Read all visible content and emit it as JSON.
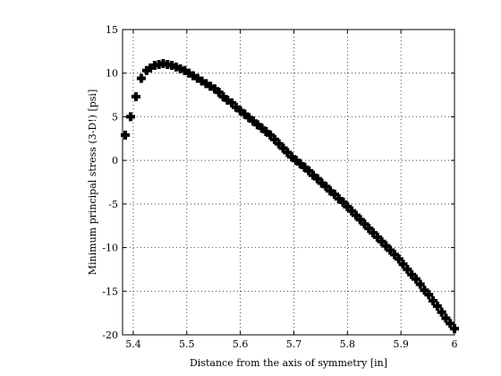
{
  "chart_data": {
    "type": "scatter",
    "title": "",
    "xlabel": "Distance from the axis of symmetry [in]",
    "ylabel": "Minimum principal stress (3-D!) [psi]",
    "xlim": [
      5.38,
      6.0
    ],
    "ylim": [
      -20,
      15
    ],
    "xticks": [
      5.4,
      5.5,
      5.6,
      5.7,
      5.8,
      5.9,
      6.0
    ],
    "xtick_labels": [
      "5.4",
      "5.5",
      "5.6",
      "5.7",
      "5.8",
      "5.9",
      "6"
    ],
    "yticks": [
      -20,
      -15,
      -10,
      -5,
      0,
      5,
      10,
      15
    ],
    "ytick_labels": [
      "-20",
      "-15",
      "-10",
      "-5",
      "0",
      "5",
      "10",
      "15"
    ],
    "grid": true,
    "marker": "plus",
    "marker_color": "#000000",
    "series": [
      {
        "x": [
          5.385,
          5.395,
          5.405,
          5.415,
          5.425,
          5.432,
          5.44,
          5.448,
          5.456,
          5.464,
          5.472,
          5.48,
          5.488,
          5.496,
          5.504,
          5.512,
          5.52,
          5.528,
          5.536,
          5.544,
          5.552,
          5.56,
          5.568,
          5.576,
          5.584,
          5.592,
          5.6,
          5.608,
          5.616,
          5.624,
          5.632,
          5.64,
          5.648,
          5.656,
          5.664,
          5.672,
          5.68,
          5.688,
          5.696,
          5.704,
          5.712,
          5.72,
          5.728,
          5.736,
          5.744,
          5.752,
          5.76,
          5.768,
          5.776,
          5.784,
          5.792,
          5.8,
          5.808,
          5.816,
          5.824,
          5.832,
          5.84,
          5.848,
          5.856,
          5.864,
          5.872,
          5.88,
          5.888,
          5.896,
          5.904,
          5.912,
          5.92,
          5.928,
          5.936,
          5.944,
          5.952,
          5.96,
          5.968,
          5.976,
          5.984,
          5.992,
          6.0
        ],
        "y": [
          2.9,
          5.0,
          7.3,
          9.4,
          10.3,
          10.6,
          10.9,
          11.0,
          11.1,
          11.0,
          10.9,
          10.7,
          10.5,
          10.3,
          10.0,
          9.7,
          9.4,
          9.1,
          8.8,
          8.5,
          8.2,
          7.8,
          7.3,
          6.9,
          6.6,
          6.1,
          5.7,
          5.3,
          4.9,
          4.5,
          4.1,
          3.7,
          3.3,
          2.9,
          2.4,
          1.9,
          1.4,
          0.9,
          0.4,
          0.0,
          -0.4,
          -0.8,
          -1.2,
          -1.7,
          -2.1,
          -2.6,
          -3.0,
          -3.5,
          -3.9,
          -4.4,
          -4.8,
          -5.3,
          -5.8,
          -6.3,
          -6.8,
          -7.3,
          -7.8,
          -8.3,
          -8.8,
          -9.3,
          -9.8,
          -10.3,
          -10.8,
          -11.3,
          -11.9,
          -12.5,
          -13.1,
          -13.6,
          -14.2,
          -14.9,
          -15.4,
          -16.1,
          -16.7,
          -17.4,
          -18.1,
          -18.7,
          -19.3
        ]
      }
    ]
  }
}
